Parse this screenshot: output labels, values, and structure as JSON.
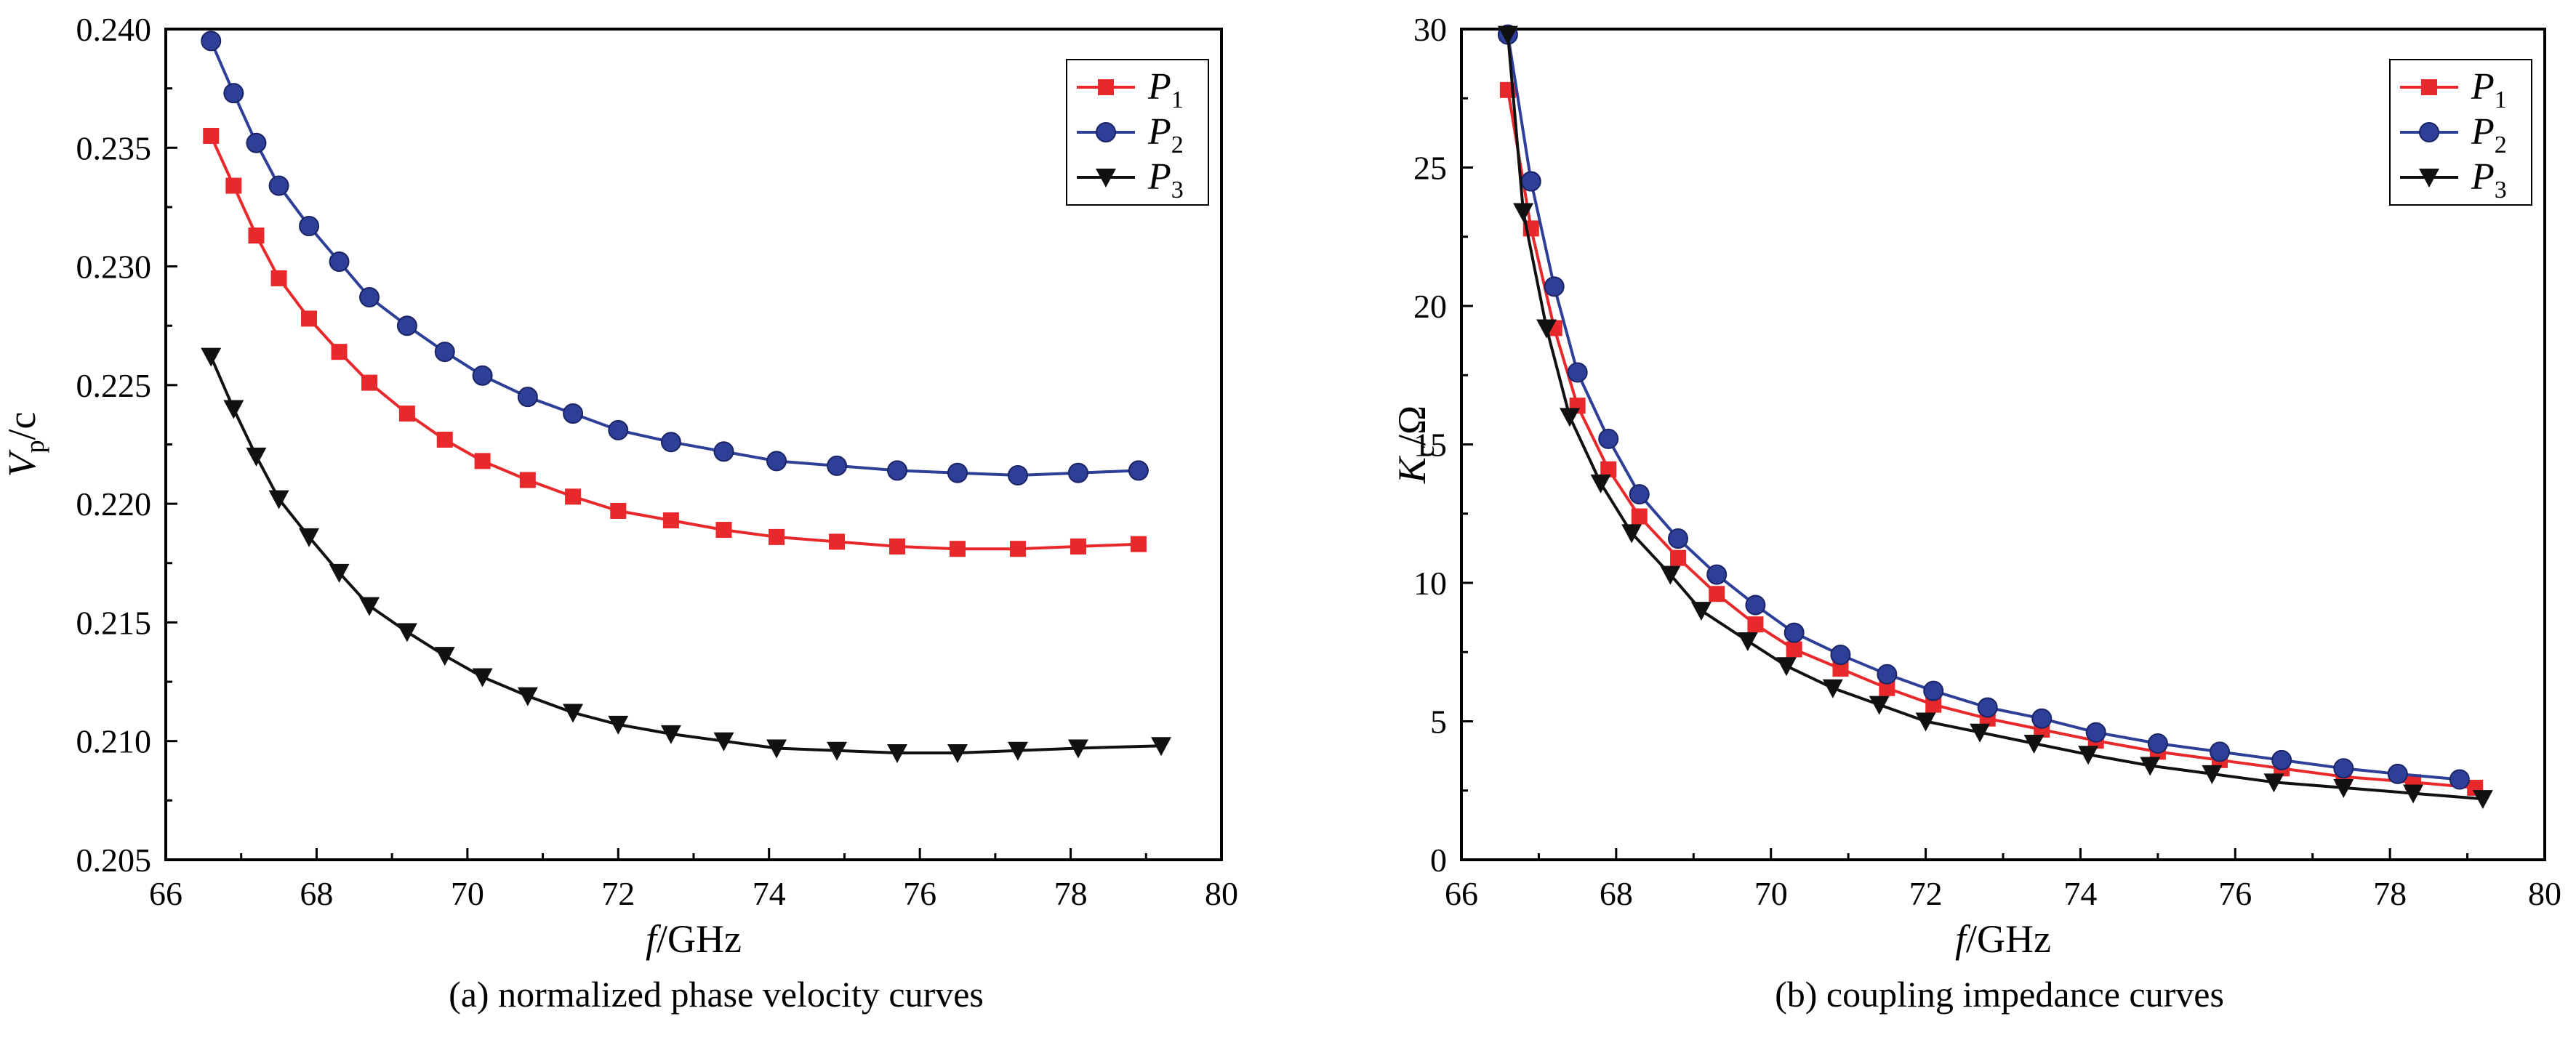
{
  "colors": {
    "P1": "#e8282b",
    "P2": "#2e3f97",
    "P3": "#111111"
  },
  "chart_data": [
    {
      "type": "line",
      "caption": "(a) normalized phase velocity curves",
      "xlabel": {
        "main": "f",
        "rest": "/GHz"
      },
      "ylabel": {
        "main": "V",
        "sub": "p",
        "rest": "/c"
      },
      "xlim": [
        66,
        80
      ],
      "ylim": [
        0.205,
        0.24
      ],
      "xticks": [
        "66",
        "68",
        "70",
        "72",
        "74",
        "76",
        "78",
        "80"
      ],
      "yticks": [
        "0.205",
        "0.210",
        "0.215",
        "0.220",
        "0.225",
        "0.230",
        "0.235",
        "0.240"
      ],
      "legend_position": "top-right",
      "series": [
        {
          "name": "P1",
          "label_main": "P",
          "label_sub": "1",
          "marker": "square",
          "color_key": "P1",
          "x": [
            66.6,
            66.9,
            67.2,
            67.5,
            67.9,
            68.3,
            68.7,
            69.2,
            69.7,
            70.2,
            70.8,
            71.4,
            72.0,
            72.7,
            73.4,
            74.1,
            74.9,
            75.7,
            76.5,
            77.3,
            78.1,
            78.9
          ],
          "y": [
            0.2355,
            0.2334,
            0.2313,
            0.2295,
            0.2278,
            0.2264,
            0.2251,
            0.2238,
            0.2227,
            0.2218,
            0.221,
            0.2203,
            0.2197,
            0.2193,
            0.2189,
            0.2186,
            0.2184,
            0.2182,
            0.2181,
            0.2181,
            0.2182,
            0.2183
          ]
        },
        {
          "name": "P2",
          "label_main": "P",
          "label_sub": "2",
          "marker": "circle",
          "color_key": "P2",
          "x": [
            66.6,
            66.9,
            67.2,
            67.5,
            67.9,
            68.3,
            68.7,
            69.2,
            69.7,
            70.2,
            70.8,
            71.4,
            72.0,
            72.7,
            73.4,
            74.1,
            74.9,
            75.7,
            76.5,
            77.3,
            78.1,
            78.9
          ],
          "y": [
            0.2395,
            0.2373,
            0.2352,
            0.2334,
            0.2317,
            0.2302,
            0.2287,
            0.2275,
            0.2264,
            0.2254,
            0.2245,
            0.2238,
            0.2231,
            0.2226,
            0.2222,
            0.2218,
            0.2216,
            0.2214,
            0.2213,
            0.2212,
            0.2213,
            0.2214
          ]
        },
        {
          "name": "P3",
          "label_main": "P",
          "label_sub": "3",
          "marker": "triangle-down",
          "color_key": "P3",
          "x": [
            66.6,
            66.9,
            67.2,
            67.5,
            67.9,
            68.3,
            68.7,
            69.2,
            69.7,
            70.2,
            70.8,
            71.4,
            72.0,
            72.7,
            73.4,
            74.1,
            74.9,
            75.7,
            76.5,
            77.3,
            78.1,
            79.2
          ],
          "y": [
            0.2262,
            0.224,
            0.222,
            0.2202,
            0.2186,
            0.2171,
            0.2157,
            0.2146,
            0.2136,
            0.2127,
            0.2119,
            0.2112,
            0.2107,
            0.2103,
            0.21,
            0.2097,
            0.2096,
            0.2095,
            0.2095,
            0.2096,
            0.2097,
            0.2098
          ]
        }
      ]
    },
    {
      "type": "line",
      "caption": "(b) coupling impedance curves",
      "xlabel": {
        "main": "f",
        "rest": "/GHz"
      },
      "ylabel": {
        "main": "K",
        "sub": "c",
        "rest": "/Ω"
      },
      "xlim": [
        66,
        80
      ],
      "ylim": [
        0,
        30
      ],
      "xticks": [
        "66",
        "68",
        "70",
        "72",
        "74",
        "76",
        "78",
        "80"
      ],
      "yticks": [
        "0",
        "5",
        "10",
        "15",
        "20",
        "25",
        "30"
      ],
      "legend_position": "top-right",
      "series": [
        {
          "name": "P1",
          "label_main": "P",
          "label_sub": "1",
          "marker": "square",
          "color_key": "P1",
          "x": [
            66.6,
            66.9,
            67.2,
            67.5,
            67.9,
            68.3,
            68.8,
            69.3,
            69.8,
            70.3,
            70.9,
            71.5,
            72.1,
            72.8,
            73.5,
            74.2,
            75.0,
            75.8,
            76.6,
            77.4,
            78.3,
            79.1
          ],
          "y": [
            27.8,
            22.8,
            19.2,
            16.4,
            14.1,
            12.4,
            10.9,
            9.6,
            8.5,
            7.6,
            6.9,
            6.2,
            5.6,
            5.1,
            4.7,
            4.3,
            3.9,
            3.6,
            3.3,
            3.0,
            2.8,
            2.6
          ]
        },
        {
          "name": "P2",
          "label_main": "P",
          "label_sub": "2",
          "marker": "circle",
          "color_key": "P2",
          "x": [
            66.6,
            66.9,
            67.2,
            67.5,
            67.9,
            68.3,
            68.8,
            69.3,
            69.8,
            70.3,
            70.9,
            71.5,
            72.1,
            72.8,
            73.5,
            74.2,
            75.0,
            75.8,
            76.6,
            77.4,
            78.1,
            78.9
          ],
          "y": [
            29.8,
            24.5,
            20.7,
            17.6,
            15.2,
            13.2,
            11.6,
            10.3,
            9.2,
            8.2,
            7.4,
            6.7,
            6.1,
            5.5,
            5.1,
            4.6,
            4.2,
            3.9,
            3.6,
            3.3,
            3.1,
            2.9
          ]
        },
        {
          "name": "P3",
          "label_main": "P",
          "label_sub": "3",
          "marker": "triangle-down",
          "color_key": "P3",
          "x": [
            66.6,
            66.8,
            67.1,
            67.4,
            67.8,
            68.2,
            68.7,
            69.1,
            69.7,
            70.2,
            70.8,
            71.4,
            72.0,
            72.7,
            73.4,
            74.1,
            74.9,
            75.7,
            76.5,
            77.4,
            78.3,
            79.2
          ],
          "y": [
            29.8,
            23.4,
            19.2,
            16.0,
            13.6,
            11.8,
            10.3,
            9.0,
            7.9,
            7.0,
            6.2,
            5.6,
            5.0,
            4.6,
            4.2,
            3.8,
            3.4,
            3.1,
            2.8,
            2.6,
            2.4,
            2.2
          ]
        }
      ]
    }
  ]
}
